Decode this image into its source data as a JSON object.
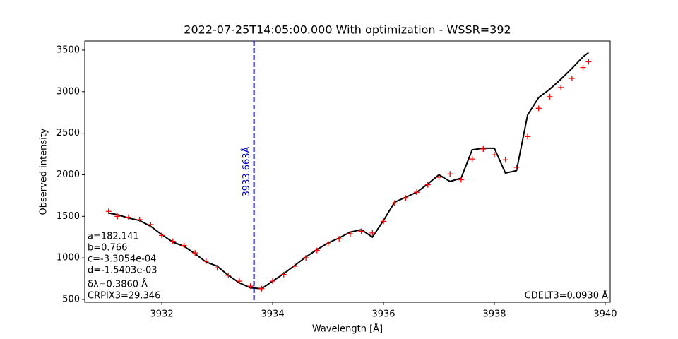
{
  "chart_data": {
    "type": "line",
    "title": "2022-07-25T14:05:00.000 With optimization - WSSR=392",
    "x_label": "Wavelength [Å]",
    "y_label": "Observed intensity",
    "x": [
      3931.04,
      3931.2,
      3931.4,
      3931.6,
      3931.8,
      3932.0,
      3932.2,
      3932.4,
      3932.6,
      3932.8,
      3933.0,
      3933.2,
      3933.4,
      3933.6,
      3933.8,
      3934.0,
      3934.2,
      3934.4,
      3934.6,
      3934.8,
      3935.0,
      3935.2,
      3935.4,
      3935.6,
      3935.8,
      3936.0,
      3936.2,
      3936.4,
      3936.6,
      3936.8,
      3937.0,
      3937.2,
      3937.4,
      3937.6,
      3937.8,
      3938.0,
      3938.2,
      3938.4,
      3938.6,
      3938.8,
      3939.0,
      3939.2,
      3939.4,
      3939.6,
      3939.7
    ],
    "series": [
      {
        "style": "line",
        "color": "#000000",
        "values": [
          1540,
          1520,
          1480,
          1450,
          1380,
          1280,
          1190,
          1140,
          1050,
          950,
          900,
          790,
          700,
          640,
          630,
          720,
          810,
          910,
          1010,
          1100,
          1180,
          1240,
          1310,
          1340,
          1250,
          1450,
          1670,
          1730,
          1790,
          1890,
          2000,
          1920,
          1960,
          2300,
          2320,
          2320,
          2020,
          2050,
          2720,
          2930,
          3030,
          3150,
          3280,
          3420,
          3470
        ]
      },
      {
        "style": "plus",
        "color": "#ff0000",
        "values": [
          1560,
          1500,
          1490,
          1460,
          1400,
          1270,
          1200,
          1150,
          1060,
          960,
          880,
          790,
          720,
          660,
          630,
          720,
          800,
          900,
          1000,
          1090,
          1170,
          1230,
          1290,
          1320,
          1300,
          1440,
          1660,
          1720,
          1790,
          1880,
          1970,
          2010,
          1940,
          2190,
          2310,
          2240,
          2180,
          2090,
          2460,
          2800,
          2940,
          3050,
          3160,
          3290,
          3360
        ]
      }
    ],
    "vline": {
      "value": 3933.663,
      "label": "3933.663Å",
      "color": "#0000cc"
    },
    "annotations_left": [
      "a=182.141",
      "b=0.766",
      "c=-3.3054e-04",
      "d=-1.5403e-03",
      "δλ=0.3860 Å",
      "CRPIX3=29.346"
    ],
    "annotation_right": "CDELT3=0.0930 Å",
    "xlim": [
      3930.61,
      3940.09
    ],
    "xticks": [
      3932,
      3934,
      3936,
      3938,
      3940
    ],
    "ylim": [
      466,
      3610
    ],
    "yticks": [
      500,
      1000,
      1500,
      2000,
      2500,
      3000,
      3500
    ]
  }
}
